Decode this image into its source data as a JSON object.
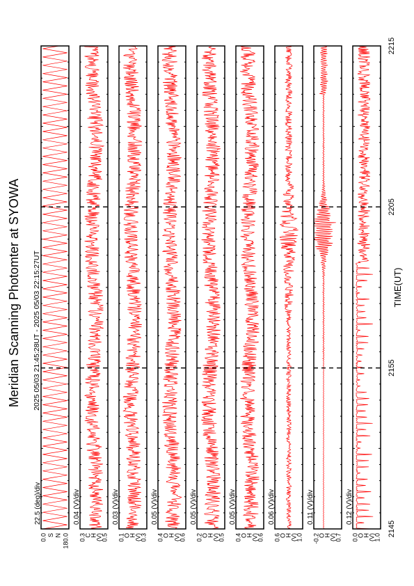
{
  "chart_data": {
    "type": "line",
    "title": "Meridian Scanning Photomter at SYOWA",
    "subtitle": "2025 05/03 21:45:28UT - 2025 05/03 22:15:27UT",
    "xlabel": "TIME(UT)",
    "xlim": [
      "2145",
      "2215"
    ],
    "x_ticks": [
      "2145",
      "2155",
      "2205",
      "2215"
    ],
    "line_color": "#ff0000",
    "grid": false,
    "panels": [
      {
        "scale": "22.5 (deg)/div",
        "ylim": [
          0.0,
          180.0
        ],
        "tick_labels": [
          "0.0",
          "S",
          "N",
          "180.0"
        ],
        "signal": "scan"
      },
      {
        "scale": "0.04 (V)/div",
        "ylim": [
          0.3,
          0.5
        ],
        "tick_labels": [
          "0.3",
          "C",
          "H",
          "(V)",
          "0.5"
        ],
        "signal": "noise"
      },
      {
        "scale": "0.03 (V)/div",
        "ylim": [
          0.1,
          0.3
        ],
        "tick_labels": [
          "0.1",
          "O",
          "H",
          "(V)",
          "0.3"
        ],
        "signal": "noise"
      },
      {
        "scale": "0.05 (V)/div",
        "ylim": [
          0.4,
          0.6
        ],
        "tick_labels": [
          "0.4",
          "O",
          "H",
          "(V)",
          "0.6"
        ],
        "signal": "noise"
      },
      {
        "scale": "0.05 (V)/div",
        "ylim": [
          0.2,
          0.5
        ],
        "tick_labels": [
          "0.2",
          "O",
          "H",
          "(V)",
          "0.5"
        ],
        "signal": "noise"
      },
      {
        "scale": "0.05 (V)/div",
        "ylim": [
          0.4,
          0.6
        ],
        "tick_labels": [
          "0.4",
          "O",
          "H",
          "(V)",
          "0.6"
        ],
        "signal": "noise"
      },
      {
        "scale": "0.06 (V)/div",
        "ylim": [
          0.6,
          1.0
        ],
        "tick_labels": [
          "0.6",
          "O",
          "H",
          "(V)",
          "1.0"
        ],
        "signal": "burst"
      },
      {
        "scale": "0.11 (V)/div",
        "ylim": [
          -0.2,
          0.7
        ],
        "tick_labels": [
          "-0.2",
          "O",
          "H",
          "(V)",
          "0.7"
        ],
        "signal": "flat"
      },
      {
        "scale": "0.12 (V)/div",
        "ylim": [
          0.0,
          1.0
        ],
        "tick_labels": [
          "0.0",
          "O",
          "H",
          "(V)",
          "1.0"
        ],
        "signal": "spikes"
      }
    ]
  }
}
